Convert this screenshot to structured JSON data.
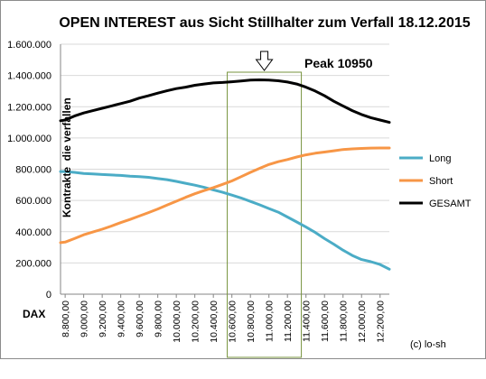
{
  "chart_data": {
    "type": "line",
    "title": "OPEN INTEREST aus Sicht Stillhalter zum Verfall 18.12.2015",
    "xlabel": "DAX",
    "ylabel": "Kontrakte  die verfallen",
    "ylim": [
      0,
      1600000
    ],
    "yticks": [
      "0",
      "200.000",
      "400.000",
      "600.000",
      "800.000",
      "1.000.000",
      "1.200.000",
      "1.400.000",
      "1.600.000"
    ],
    "ytick_values": [
      0,
      200000,
      400000,
      600000,
      800000,
      1000000,
      1200000,
      1400000,
      1600000
    ],
    "xlim": [
      8750,
      12300
    ],
    "xticks": [
      "8.800,00",
      "9.000,00",
      "9.200,00",
      "9.400,00",
      "9.600,00",
      "9.800,00",
      "10.000,00",
      "10.200,00",
      "10.400,00",
      "10.600,00",
      "10.800,00",
      "11.000,00",
      "11.200,00",
      "11.400,00",
      "11.600,00",
      "11.800,00",
      "12.000,00",
      "12.200,00"
    ],
    "xtick_values": [
      8800,
      9000,
      9200,
      9400,
      9600,
      9800,
      10000,
      10200,
      10400,
      10600,
      10800,
      11000,
      11200,
      11400,
      11600,
      11800,
      12000,
      12200
    ],
    "grid": true,
    "legend_position": "right",
    "highlight_range": [
      10550,
      11350
    ],
    "annotation": "Peak 10950",
    "annotation_x": 10950,
    "credit": "(c) lo-sh",
    "series": [
      {
        "name": "Long",
        "color": "#4BACC6",
        "points": [
          [
            8750,
            785000
          ],
          [
            8800,
            785000
          ],
          [
            8900,
            780000
          ],
          [
            9000,
            772000
          ],
          [
            9100,
            770000
          ],
          [
            9200,
            766000
          ],
          [
            9300,
            763000
          ],
          [
            9400,
            760000
          ],
          [
            9500,
            755000
          ],
          [
            9600,
            752000
          ],
          [
            9700,
            748000
          ],
          [
            9800,
            740000
          ],
          [
            9900,
            733000
          ],
          [
            10000,
            722000
          ],
          [
            10100,
            710000
          ],
          [
            10200,
            698000
          ],
          [
            10300,
            684000
          ],
          [
            10400,
            668000
          ],
          [
            10500,
            652000
          ],
          [
            10600,
            634000
          ],
          [
            10700,
            616000
          ],
          [
            10800,
            594000
          ],
          [
            10900,
            572000
          ],
          [
            11000,
            548000
          ],
          [
            11100,
            525000
          ],
          [
            11200,
            494000
          ],
          [
            11300,
            462000
          ],
          [
            11400,
            430000
          ],
          [
            11500,
            395000
          ],
          [
            11600,
            356000
          ],
          [
            11700,
            320000
          ],
          [
            11800,
            282000
          ],
          [
            11900,
            248000
          ],
          [
            12000,
            222000
          ],
          [
            12100,
            208000
          ],
          [
            12200,
            190000
          ],
          [
            12300,
            160000
          ]
        ]
      },
      {
        "name": "Short",
        "color": "#F79646",
        "points": [
          [
            8750,
            330000
          ],
          [
            8800,
            333000
          ],
          [
            8900,
            356000
          ],
          [
            9000,
            380000
          ],
          [
            9100,
            398000
          ],
          [
            9200,
            416000
          ],
          [
            9300,
            436000
          ],
          [
            9400,
            458000
          ],
          [
            9500,
            478000
          ],
          [
            9600,
            500000
          ],
          [
            9700,
            522000
          ],
          [
            9800,
            545000
          ],
          [
            9900,
            570000
          ],
          [
            10000,
            595000
          ],
          [
            10100,
            620000
          ],
          [
            10200,
            643000
          ],
          [
            10300,
            663000
          ],
          [
            10400,
            682000
          ],
          [
            10500,
            703000
          ],
          [
            10600,
            725000
          ],
          [
            10700,
            752000
          ],
          [
            10800,
            780000
          ],
          [
            10900,
            806000
          ],
          [
            11000,
            830000
          ],
          [
            11100,
            848000
          ],
          [
            11200,
            862000
          ],
          [
            11300,
            878000
          ],
          [
            11400,
            892000
          ],
          [
            11500,
            902000
          ],
          [
            11600,
            910000
          ],
          [
            11700,
            918000
          ],
          [
            11800,
            926000
          ],
          [
            11900,
            930000
          ],
          [
            12000,
            933000
          ],
          [
            12100,
            935000
          ],
          [
            12200,
            936000
          ],
          [
            12300,
            936000
          ]
        ]
      },
      {
        "name": "GESAMT",
        "color": "#000000",
        "points": [
          [
            8750,
            1110000
          ],
          [
            8800,
            1115000
          ],
          [
            8900,
            1140000
          ],
          [
            9000,
            1160000
          ],
          [
            9100,
            1175000
          ],
          [
            9200,
            1190000
          ],
          [
            9300,
            1205000
          ],
          [
            9400,
            1220000
          ],
          [
            9500,
            1235000
          ],
          [
            9600,
            1255000
          ],
          [
            9700,
            1270000
          ],
          [
            9800,
            1287000
          ],
          [
            9900,
            1302000
          ],
          [
            10000,
            1316000
          ],
          [
            10100,
            1325000
          ],
          [
            10200,
            1337000
          ],
          [
            10300,
            1345000
          ],
          [
            10400,
            1352000
          ],
          [
            10500,
            1355000
          ],
          [
            10600,
            1360000
          ],
          [
            10700,
            1365000
          ],
          [
            10800,
            1370000
          ],
          [
            10900,
            1372000
          ],
          [
            11000,
            1370000
          ],
          [
            11100,
            1366000
          ],
          [
            11200,
            1358000
          ],
          [
            11300,
            1345000
          ],
          [
            11400,
            1325000
          ],
          [
            11500,
            1300000
          ],
          [
            11600,
            1270000
          ],
          [
            11700,
            1235000
          ],
          [
            11800,
            1205000
          ],
          [
            11900,
            1175000
          ],
          [
            12000,
            1150000
          ],
          [
            12100,
            1130000
          ],
          [
            12200,
            1115000
          ],
          [
            12300,
            1100000
          ]
        ]
      }
    ]
  }
}
